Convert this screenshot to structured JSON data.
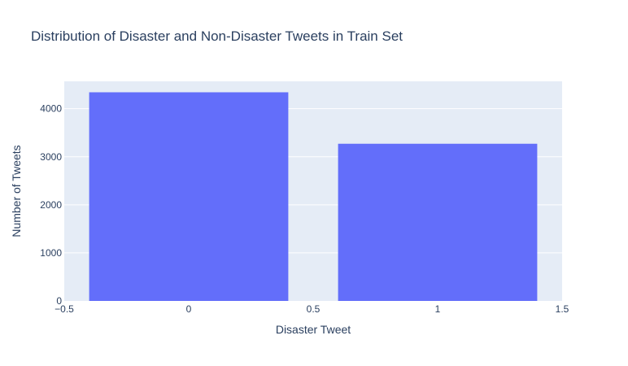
{
  "chart_data": {
    "type": "bar",
    "title": "Distribution of Disaster and Non-Disaster Tweets in Train Set",
    "xlabel": "Disaster Tweet",
    "ylabel": "Number of Tweets",
    "x": [
      0,
      1
    ],
    "values": [
      4342,
      3271
    ],
    "bar_width": 0.8,
    "xlim": [
      -0.5,
      1.5
    ],
    "ylim": [
      0,
      4570
    ],
    "x_ticks": [
      -0.5,
      0,
      0.5,
      1,
      1.5
    ],
    "x_tick_labels": [
      "−0.5",
      "0",
      "0.5",
      "1",
      "1.5"
    ],
    "y_ticks": [
      0,
      1000,
      2000,
      3000,
      4000
    ],
    "y_tick_labels": [
      "0",
      "1000",
      "2000",
      "3000",
      "4000"
    ],
    "grid": true,
    "legend": "none",
    "colors": {
      "bar": "#636efa",
      "plot_background": "#e5ecf6",
      "gridline": "#ffffff",
      "text": "#2a3f5f"
    }
  }
}
